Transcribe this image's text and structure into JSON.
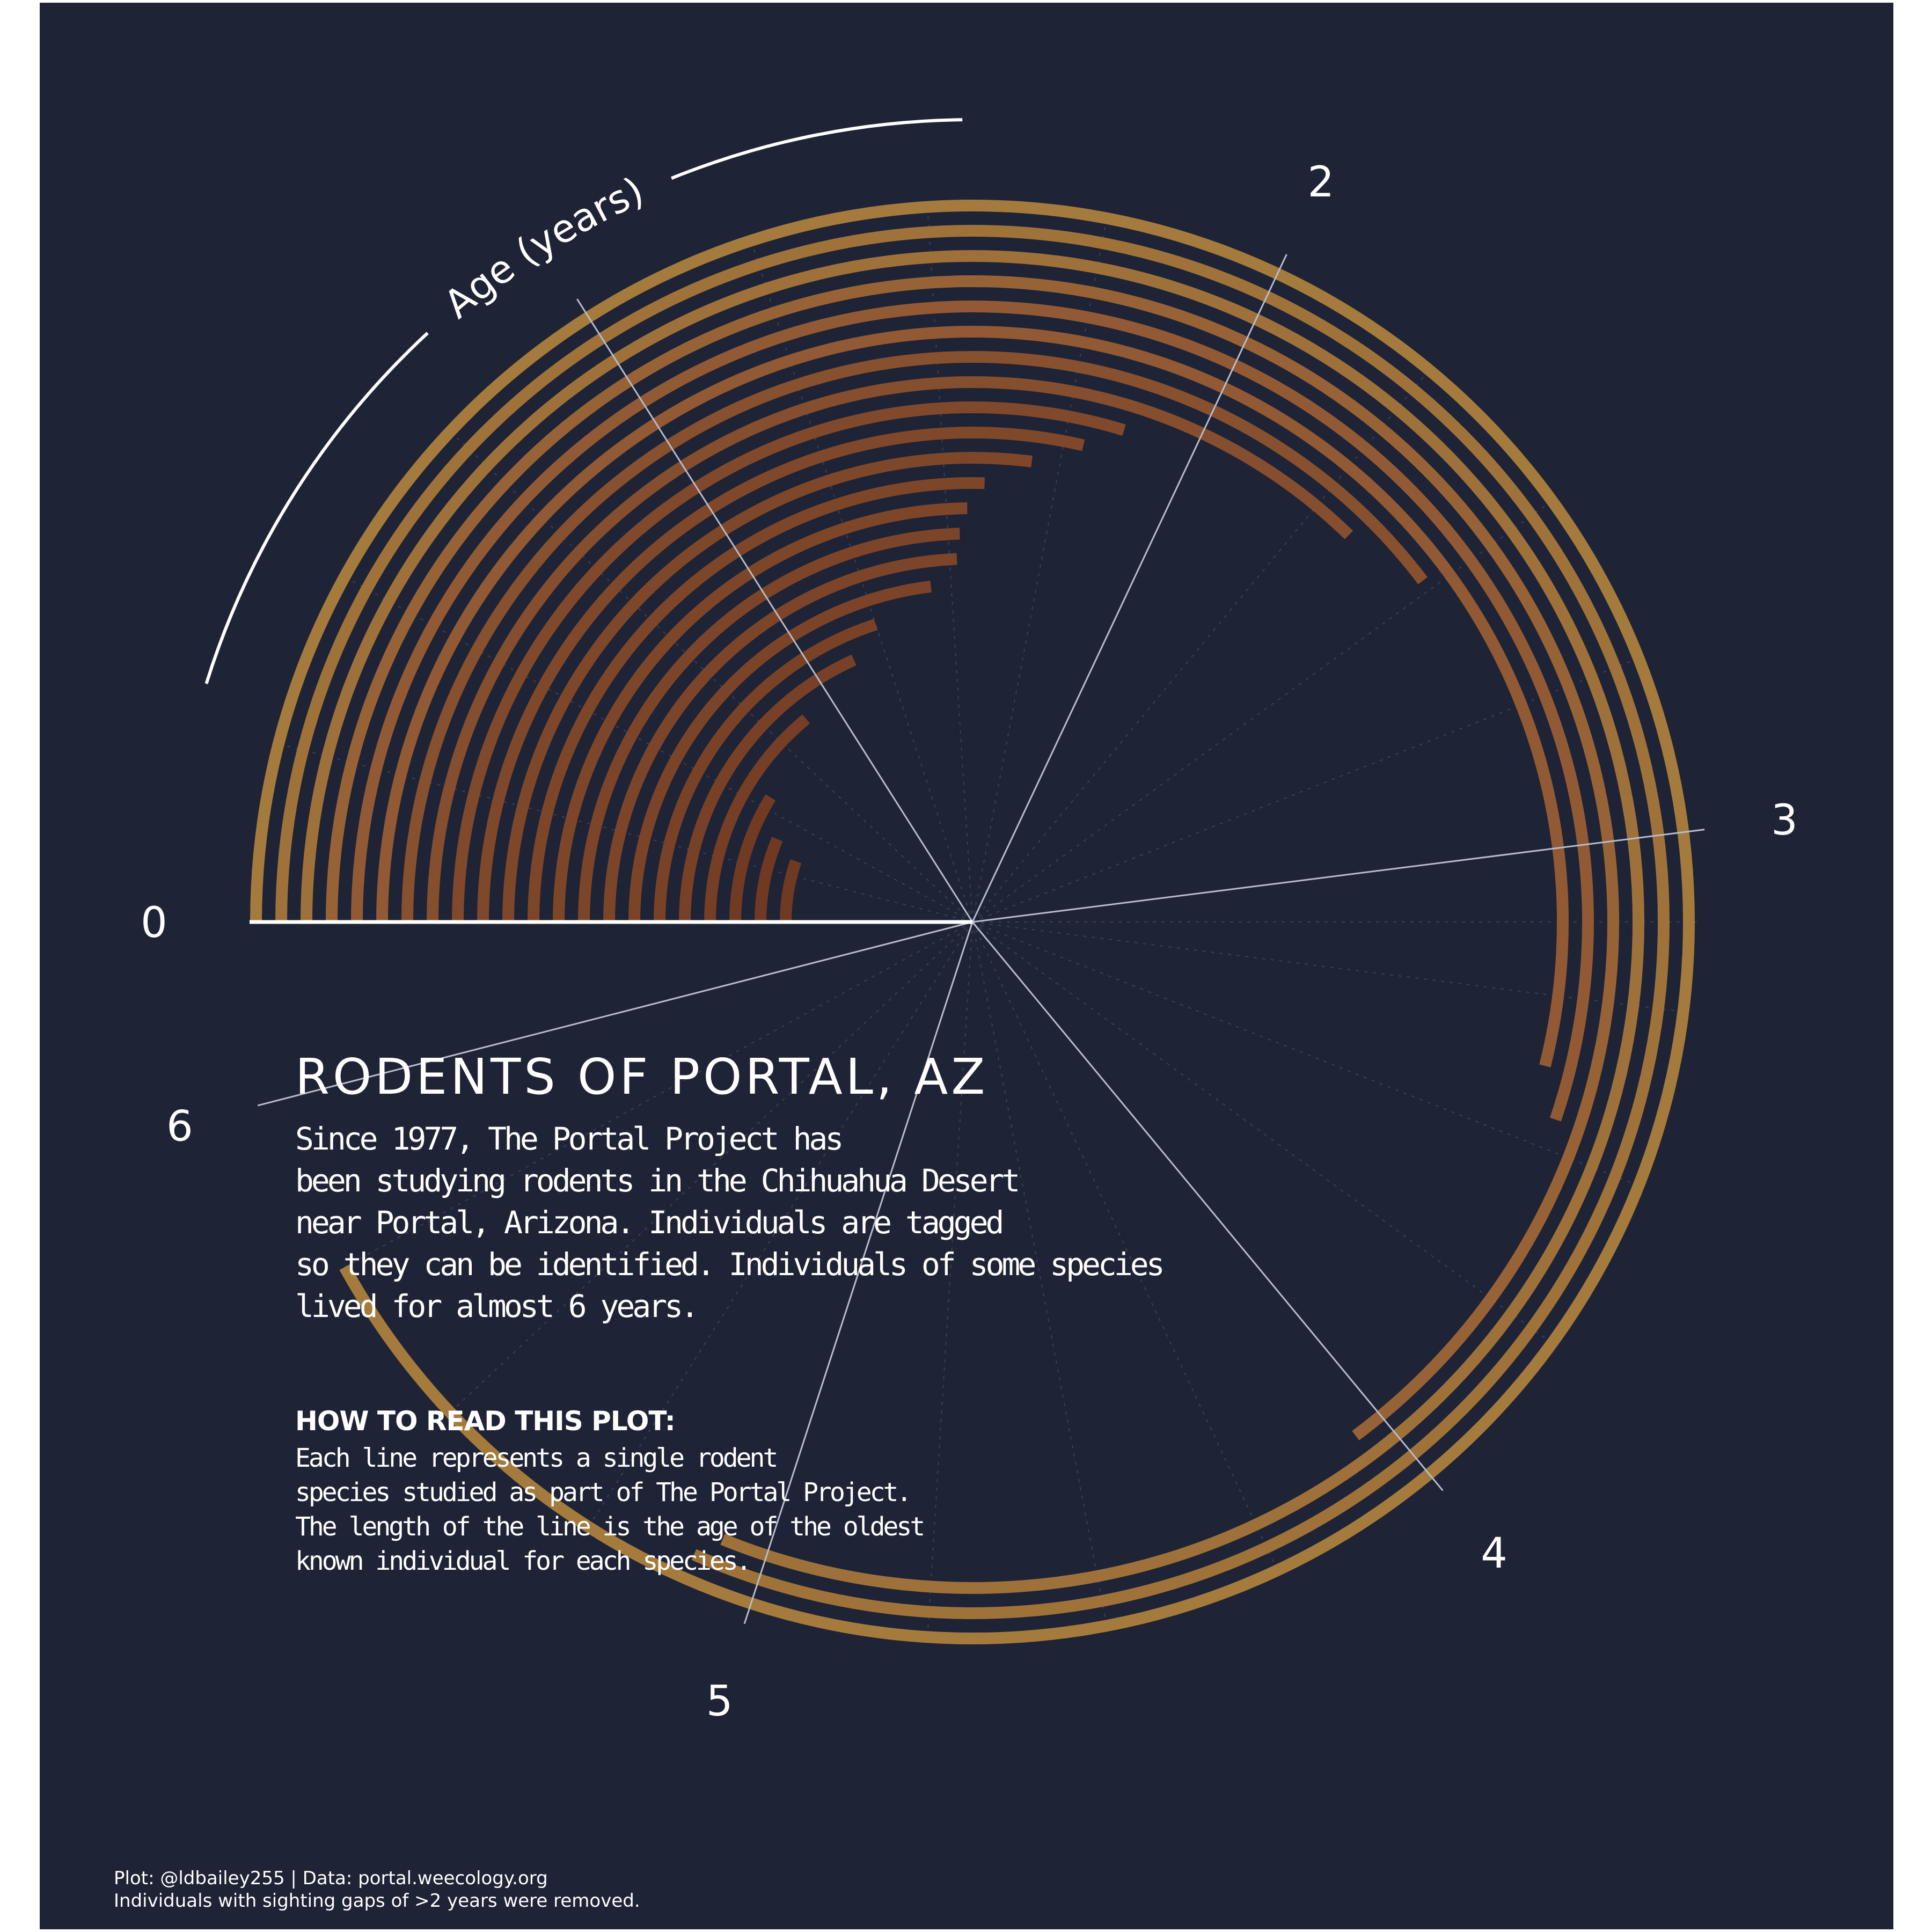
{
  "chart_data": {
    "type": "radial-bar",
    "title": "RODENTS OF PORTAL, AZ",
    "axis_label": "Age (years)",
    "angular_range": [
      0,
      6.25
    ],
    "tick_labels": [
      "0",
      "2",
      "3",
      "4",
      "5",
      "6"
    ],
    "tick_values": [
      0,
      2,
      3,
      4,
      5,
      6
    ],
    "grid": true,
    "series": [
      {
        "rank": 1,
        "max_age": 5.75
      },
      {
        "rank": 2,
        "max_age": 5.1
      },
      {
        "rank": 3,
        "max_age": 5.07
      },
      {
        "rank": 4,
        "max_age": 4.05
      },
      {
        "rank": 5,
        "max_age": 3.45
      },
      {
        "rank": 6,
        "max_age": 3.37
      },
      {
        "rank": 7,
        "max_age": 2.48
      },
      {
        "rank": 8,
        "max_age": 2.33
      },
      {
        "rank": 9,
        "max_age": 1.86
      },
      {
        "rank": 10,
        "max_age": 1.79
      },
      {
        "rank": 11,
        "max_age": 1.69
      },
      {
        "rank": 12,
        "max_age": 1.59
      },
      {
        "rank": 13,
        "max_age": 1.55
      },
      {
        "rank": 14,
        "max_age": 1.53
      },
      {
        "rank": 15,
        "max_age": 1.52
      },
      {
        "rank": 16,
        "max_age": 1.44
      },
      {
        "rank": 17,
        "max_age": 1.25
      },
      {
        "rank": 18,
        "max_age": 1.14
      },
      {
        "rank": 19,
        "max_age": 0.88
      },
      {
        "rank": 20,
        "max_age": 0.55
      },
      {
        "rank": 21,
        "max_age": 0.4
      },
      {
        "rank": 22,
        "max_age": 0.33
      }
    ],
    "colors": {
      "low": "#6b3520",
      "mid": "#925a34",
      "high": "#a8823e",
      "background": "#1e2336"
    }
  },
  "text": {
    "title": "RODENTS OF PORTAL, AZ",
    "description": [
      "Since 1977, The Portal Project has",
      "been studying rodents in the Chihuahua Desert",
      "near Portal, Arizona. Individuals are tagged",
      "so they can be identified. Individuals of some species",
      "lived for almost 6 years."
    ],
    "howto_heading": "HOW TO READ THIS PLOT:",
    "howto_body": [
      "Each line represents a single rodent",
      "species studied as part of The Portal Project.",
      "The length of the line is the age of the oldest",
      "known individual for each species."
    ],
    "caption": [
      "Plot: @ldbailey255 | Data: portal.weecology.org",
      "Individuals with sighting gaps of >2 years were removed."
    ]
  }
}
